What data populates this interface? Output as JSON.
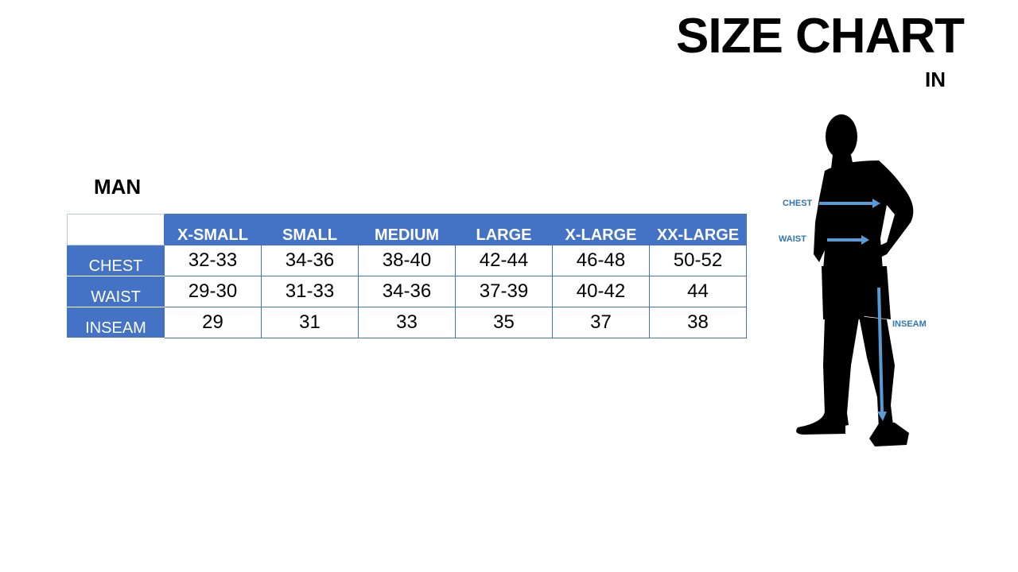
{
  "title": "SIZE CHART",
  "unit": "IN",
  "section": "MAN",
  "table": {
    "columns": [
      "X-SMALL",
      "SMALL",
      "MEDIUM",
      "LARGE",
      "X-LARGE",
      "XX-LARGE"
    ],
    "rows": [
      {
        "label": "CHEST",
        "values": [
          "32-33",
          "34-36",
          "38-40",
          "42-44",
          "46-48",
          "50-52"
        ]
      },
      {
        "label": "WAIST",
        "values": [
          "29-30",
          "31-33",
          "34-36",
          "37-39",
          "40-42",
          "44"
        ]
      },
      {
        "label": "INSEAM",
        "values": [
          "29",
          "31",
          "33",
          "35",
          "37",
          "38"
        ]
      }
    ]
  },
  "figure": {
    "labels": {
      "chest": "CHEST",
      "waist": "WAIST",
      "inseam": "INSEAM"
    }
  },
  "colors": {
    "header": "#4472C4",
    "arrow": "#5B9BD5",
    "label": "#2E75B6"
  }
}
